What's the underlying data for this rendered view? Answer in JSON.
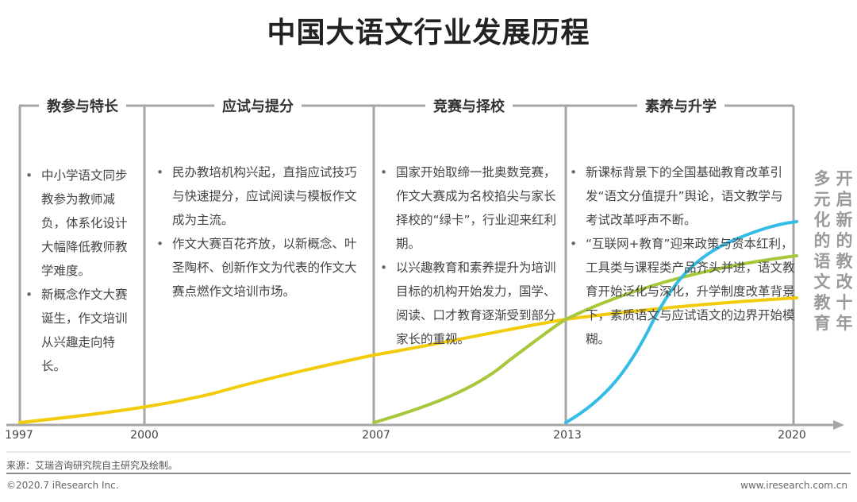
{
  "title": "中国大语文行业发展历程",
  "phases": [
    {
      "label": "教参与特长",
      "items": [
        "中小学语文同步教参为教师减负，体系化设计大幅降低教师教学难度。",
        "新概念作文大赛诞生，作文培训从兴趣走向特长。"
      ]
    },
    {
      "label": "应试与提分",
      "items": [
        "民办教培机构兴起，直指应试技巧与快速提分，应试阅读与模板作文成为主流。",
        "作文大赛百花齐放，以新概念、叶圣陶杯、创新作文为代表的作文大赛点燃作文培训市场。"
      ]
    },
    {
      "label": "竞赛与择校",
      "items": [
        "国家开始取缔一批奥数竞赛，作文大赛成为名校掐尖与家长择校的“绿卡”，行业迎来红利期。",
        "以兴趣教育和素养提升为培训目标的机构开始发力，国学、阅读、口才教育逐渐受到部分家长的重视。"
      ]
    },
    {
      "label": "素养与升学",
      "items": [
        "新课标背景下的全国基础教育改革引发“语文分值提升”舆论，语文教学与考试改革呼声不断。",
        "“互联网+教育”迎来政策与资本红利，工具类与课程类产品齐头并进，语文教育开始泛化与深化，升学制度改革背景下，素质语文与应试语文的边界开始模糊。"
      ]
    }
  ],
  "years": [
    "1997",
    "2000",
    "2007",
    "2013",
    "2020"
  ],
  "side_labels": {
    "left": "多元化的语文教育",
    "right": "开启新的教改十年"
  },
  "chart_data": {
    "type": "line",
    "x": [
      1997,
      2000,
      2007,
      2013,
      2020
    ],
    "series": [
      {
        "name": "yellow",
        "color": "#f2cc0c",
        "values": [
          0,
          9,
          42,
          60,
          70
        ]
      },
      {
        "name": "green",
        "color": "#a6c83a",
        "values": [
          null,
          null,
          0,
          60,
          85
        ]
      },
      {
        "name": "blue",
        "color": "#33bde6",
        "values": [
          null,
          null,
          null,
          0,
          100
        ]
      }
    ],
    "ylim": [
      0,
      100
    ]
  },
  "source": "来源：艾瑞咨询研究院自主研究及绘制。",
  "footer": {
    "left": "©2020.7 iResearch Inc.",
    "right": "www.iresearch.com.cn"
  },
  "colors": {
    "axis": "#a6a6a6",
    "text_gray": "#9a9a9a"
  }
}
